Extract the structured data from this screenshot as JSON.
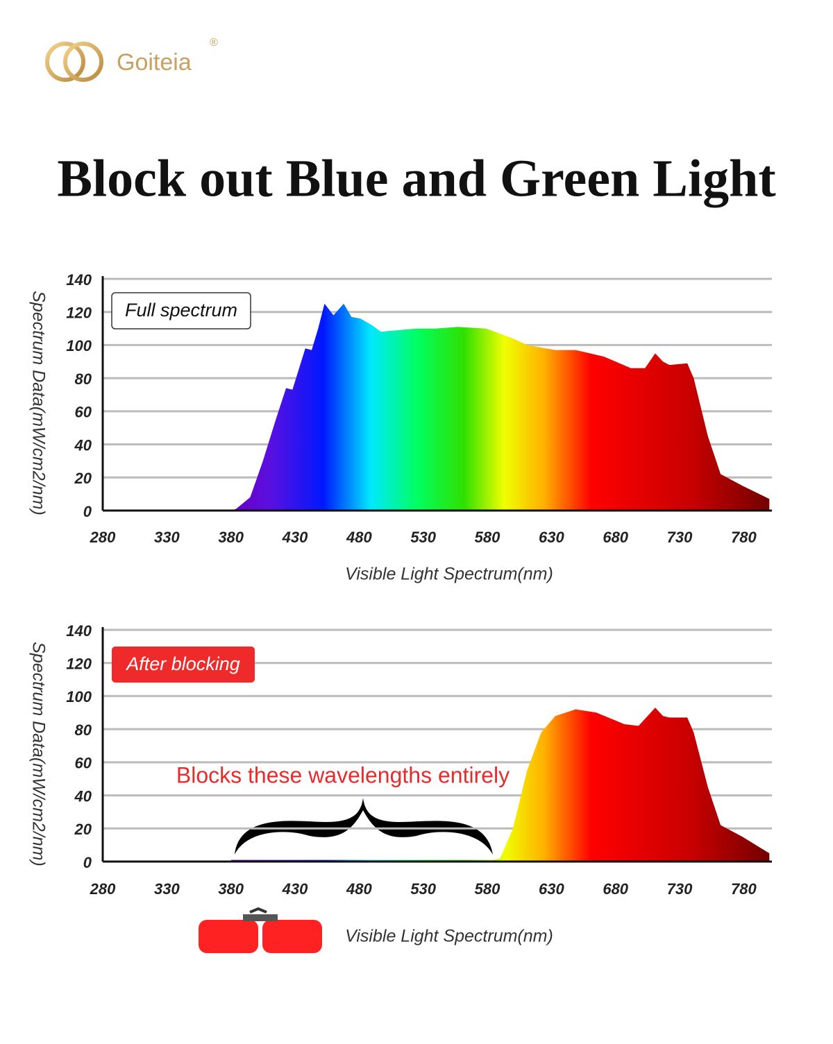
{
  "header": {
    "brand": "Goiteia",
    "registered": "®",
    "title": "Block out Blue and Green Light"
  },
  "chart_data": [
    {
      "type": "area",
      "label": "Full spectrum",
      "x_label": "Visible Light Spectrum(nm)",
      "y_label": "Spectrum Data(mW/cm2/nm)",
      "x": [
        380,
        384,
        395,
        405,
        415,
        423,
        428,
        438,
        443,
        448,
        453,
        460,
        468,
        474,
        481,
        490,
        497,
        510,
        525,
        540,
        557,
        579,
        600,
        611,
        633,
        649,
        671,
        692,
        703,
        711,
        717,
        722,
        736,
        741,
        752,
        762,
        779,
        800
      ],
      "values": [
        0,
        1,
        8,
        30,
        55,
        74,
        73,
        98,
        97,
        110,
        125,
        118,
        125,
        117,
        116,
        112,
        108,
        109,
        110,
        110,
        111,
        110,
        104,
        100,
        97,
        97,
        93,
        86,
        86,
        95,
        90,
        88,
        89,
        80,
        45,
        22,
        15,
        7
      ],
      "xlim": [
        280,
        802
      ],
      "xticks": [
        280,
        330,
        380,
        430,
        480,
        530,
        580,
        630,
        680,
        730,
        780
      ],
      "ylim": [
        0,
        140
      ],
      "yticks": [
        0,
        20,
        40,
        60,
        80,
        100,
        120,
        140
      ],
      "grid": true
    },
    {
      "type": "area",
      "label": "After blocking",
      "annotation": "Blocks these wavelengths entirely",
      "x_label": "Visible Light Spectrum(nm)",
      "y_label": "Spectrum Data(mW/cm2/nm)",
      "x": [
        380,
        585,
        590,
        600,
        611,
        622,
        633,
        649,
        665,
        687,
        698,
        711,
        717,
        722,
        736,
        741,
        752,
        762,
        779,
        800
      ],
      "values": [
        1,
        1,
        2,
        20,
        55,
        78,
        88,
        92,
        90,
        83,
        82,
        93,
        88,
        87,
        87,
        78,
        45,
        22,
        15,
        5
      ],
      "xlim": [
        280,
        802
      ],
      "xticks": [
        280,
        330,
        380,
        430,
        480,
        530,
        580,
        630,
        680,
        730,
        780
      ],
      "ylim": [
        0,
        140
      ],
      "yticks": [
        0,
        20,
        40,
        60,
        80,
        100,
        120,
        140
      ],
      "grid": true
    }
  ]
}
